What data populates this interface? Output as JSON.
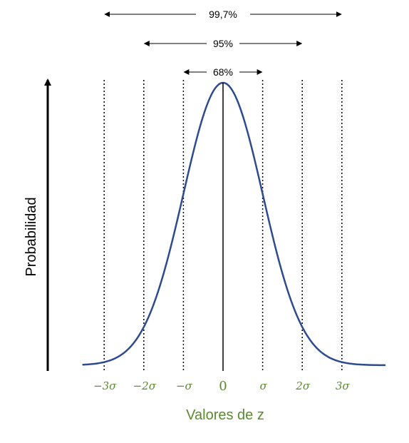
{
  "chart_data": {
    "type": "line",
    "title": "",
    "xlabel": "Valores de z",
    "ylabel": "Probabilidad",
    "xlim": [
      -3.55,
      4.1
    ],
    "x_ticks": [
      {
        "value": -3,
        "label": "−3σ"
      },
      {
        "value": -2,
        "label": "−2σ"
      },
      {
        "value": -1,
        "label": "−σ"
      },
      {
        "value": 0,
        "label": "0"
      },
      {
        "value": 1,
        "label": "σ"
      },
      {
        "value": 2,
        "label": "2σ"
      },
      {
        "value": 3,
        "label": "3σ"
      }
    ],
    "curve": "standard-normal-density",
    "intervals": [
      {
        "label": "68%",
        "from": -1,
        "to": 1
      },
      {
        "label": "95%",
        "from": -2,
        "to": 2
      },
      {
        "label": "99,7%",
        "from": -3,
        "to": 3
      }
    ],
    "grid": false,
    "colors": {
      "curve": "#2e4b8f",
      "labels": "#5a8a2e",
      "lines": "#000000"
    }
  }
}
